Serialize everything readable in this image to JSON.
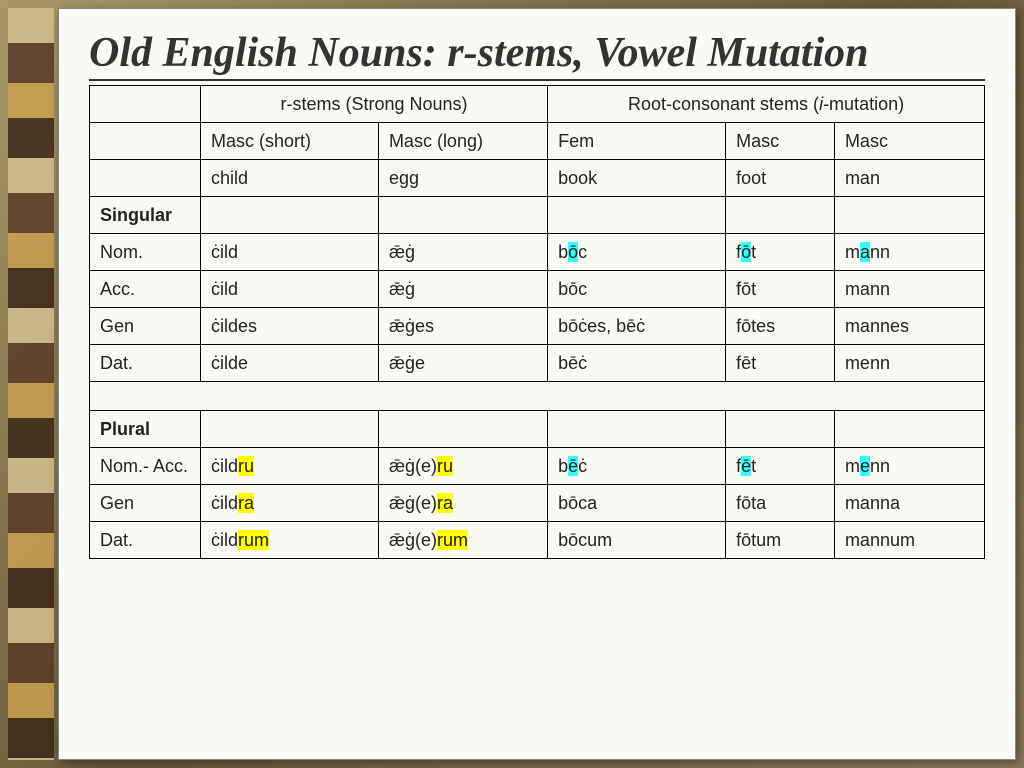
{
  "title": "Old English Nouns: r-stems, Vowel Mutation",
  "headers": {
    "group1": "r-stems   (Strong Nouns)",
    "group2": "Root-consonant stems (",
    "group2_i": "i",
    "group2_tail": "-mutation)",
    "col1": "Masc (short)",
    "col2": "Masc (long)",
    "col3": "Fem",
    "col4": "Masc",
    "col5": "Masc",
    "gloss1": "child",
    "gloss2": "egg",
    "gloss3": "book",
    "gloss4": "foot",
    "gloss5": "man"
  },
  "sections": {
    "singular": "Singular",
    "plural": "Plural"
  },
  "rows": {
    "nom": {
      "label": "Nom.",
      "c1": "ċild",
      "c2": "ǣġ",
      "c3_a": "b",
      "c3_b": "ō",
      "c3_c": "c",
      "c4_a": "f",
      "c4_b": "ō",
      "c4_c": "t",
      "c5_a": "m",
      "c5_b": "a",
      "c5_c": "nn"
    },
    "acc": {
      "label": "Acc.",
      "c1": "ċild",
      "c2": "ǣġ",
      "c3": "bōc",
      "c4": "fōt",
      "c5": "mann"
    },
    "gen": {
      "label": "Gen",
      "c1": "ċildes",
      "c2": "ǣġes",
      "c3": "bōċes, bēċ",
      "c4": "fōtes",
      "c5": "mannes"
    },
    "dat": {
      "label": "Dat.",
      "c1": "ċilde",
      "c2": "ǣġe",
      "c3": "bēċ",
      "c4": "fēt",
      "c5": "menn"
    },
    "pnom": {
      "label": "Nom.- Acc.",
      "c1_a": "ċild",
      "c1_b": "ru",
      "c2_a": "ǣġ(e)",
      "c2_b": "ru",
      "c3_a": "b",
      "c3_b": "ē",
      "c3_c": "ċ",
      "c4_a": "f",
      "c4_b": "ē",
      "c4_c": "t",
      "c5_a": "m",
      "c5_b": "e",
      "c5_c": "nn"
    },
    "pgen": {
      "label": "Gen",
      "c1_a": "ċild",
      "c1_b": "ra",
      "c2_a": "ǣġ(e)",
      "c2_b": "ra",
      "c3": "bōca",
      "c4": "fōta",
      "c5": "manna"
    },
    "pdat": {
      "label": "Dat.",
      "c1_a": "ċild",
      "c1_b": "rum",
      "c2_a": "ǣġ(e)",
      "c2_b": "rum",
      "c3": "bōcum",
      "c4": "fōtum",
      "c5": "mannum"
    }
  }
}
